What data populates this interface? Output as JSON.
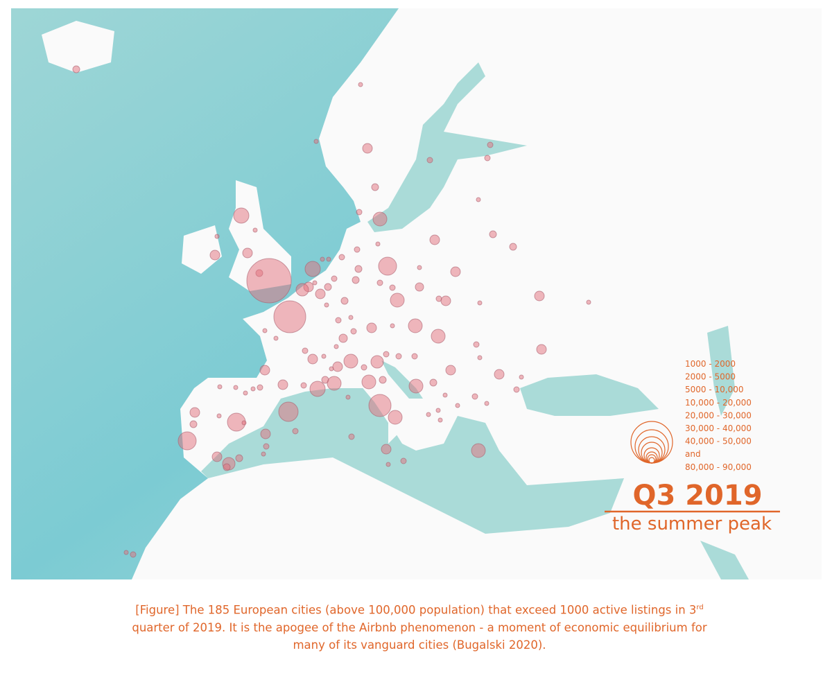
{
  "legend": {
    "items": [
      "1000 - 2000",
      "2000 - 5000",
      "5000 - 10,000",
      "10,000 - 20,000",
      "20,000 - 30,000",
      "30,000 - 40,000",
      "40,000 - 50,000",
      "and",
      "80,000 - 90,000"
    ]
  },
  "header": {
    "title": "Q3 2019",
    "subtitle": "the summer peak"
  },
  "caption": {
    "before": "[Figure] The 185 European cities (above 100,000 population) that exceed 1000 active listings in 3",
    "sup": "rd",
    "after": " quarter of 2019. It is the apogee of the Airbnb phenomenon - a moment of economic equilibrium for many of its vanguard cities (Bugalski 2020)."
  }
}
